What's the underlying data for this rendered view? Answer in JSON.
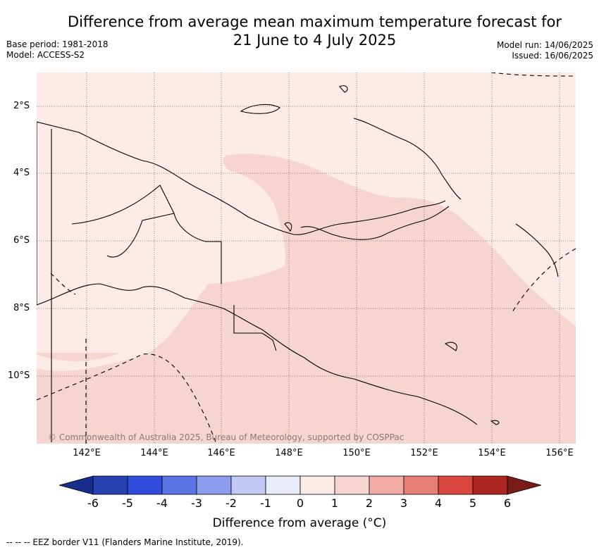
{
  "title_line1": "Difference from average mean maximum temperature forecast for",
  "title_line2": "21 June to 4 July 2025",
  "base_period": "Base period: 1981-2018",
  "model": "Model: ACCESS-S2",
  "model_run": "Model run: 14/06/2025",
  "issued": "Issued: 16/06/2025",
  "lat_labels": [
    "2°S",
    "4°S",
    "6°S",
    "8°S",
    "10°S"
  ],
  "lon_labels": [
    "142°E",
    "144°E",
    "146°E",
    "148°E",
    "150°E",
    "152°E",
    "154°E",
    "156°E"
  ],
  "copyright": "© Commonwealth of Australia 2025, Bureau of Meteorology, supported by COSPPac",
  "colorbar": {
    "title": "Difference from average (°C)",
    "ticks": [
      "-6",
      "-5",
      "-4",
      "-3",
      "-2",
      "-1",
      "0",
      "1",
      "2",
      "3",
      "4",
      "5",
      "6"
    ],
    "colors": [
      "#1a2c8c",
      "#2541b2",
      "#2f4ee0",
      "#5b74e6",
      "#8c9ded",
      "#c2c9f4",
      "#e8ebfa",
      "#fdebe8",
      "#f6d4d0",
      "#f0aca5",
      "#e77f77",
      "#d9473e",
      "#ad2621",
      "#7a1c17"
    ]
  },
  "map_values": {
    "background_anomaly_bin": "0 to 1",
    "center_anomaly_bin": "1 to 2"
  },
  "footnote": "-- -- -- EEZ border V11 (Flanders Marine Institute, 2019)."
}
